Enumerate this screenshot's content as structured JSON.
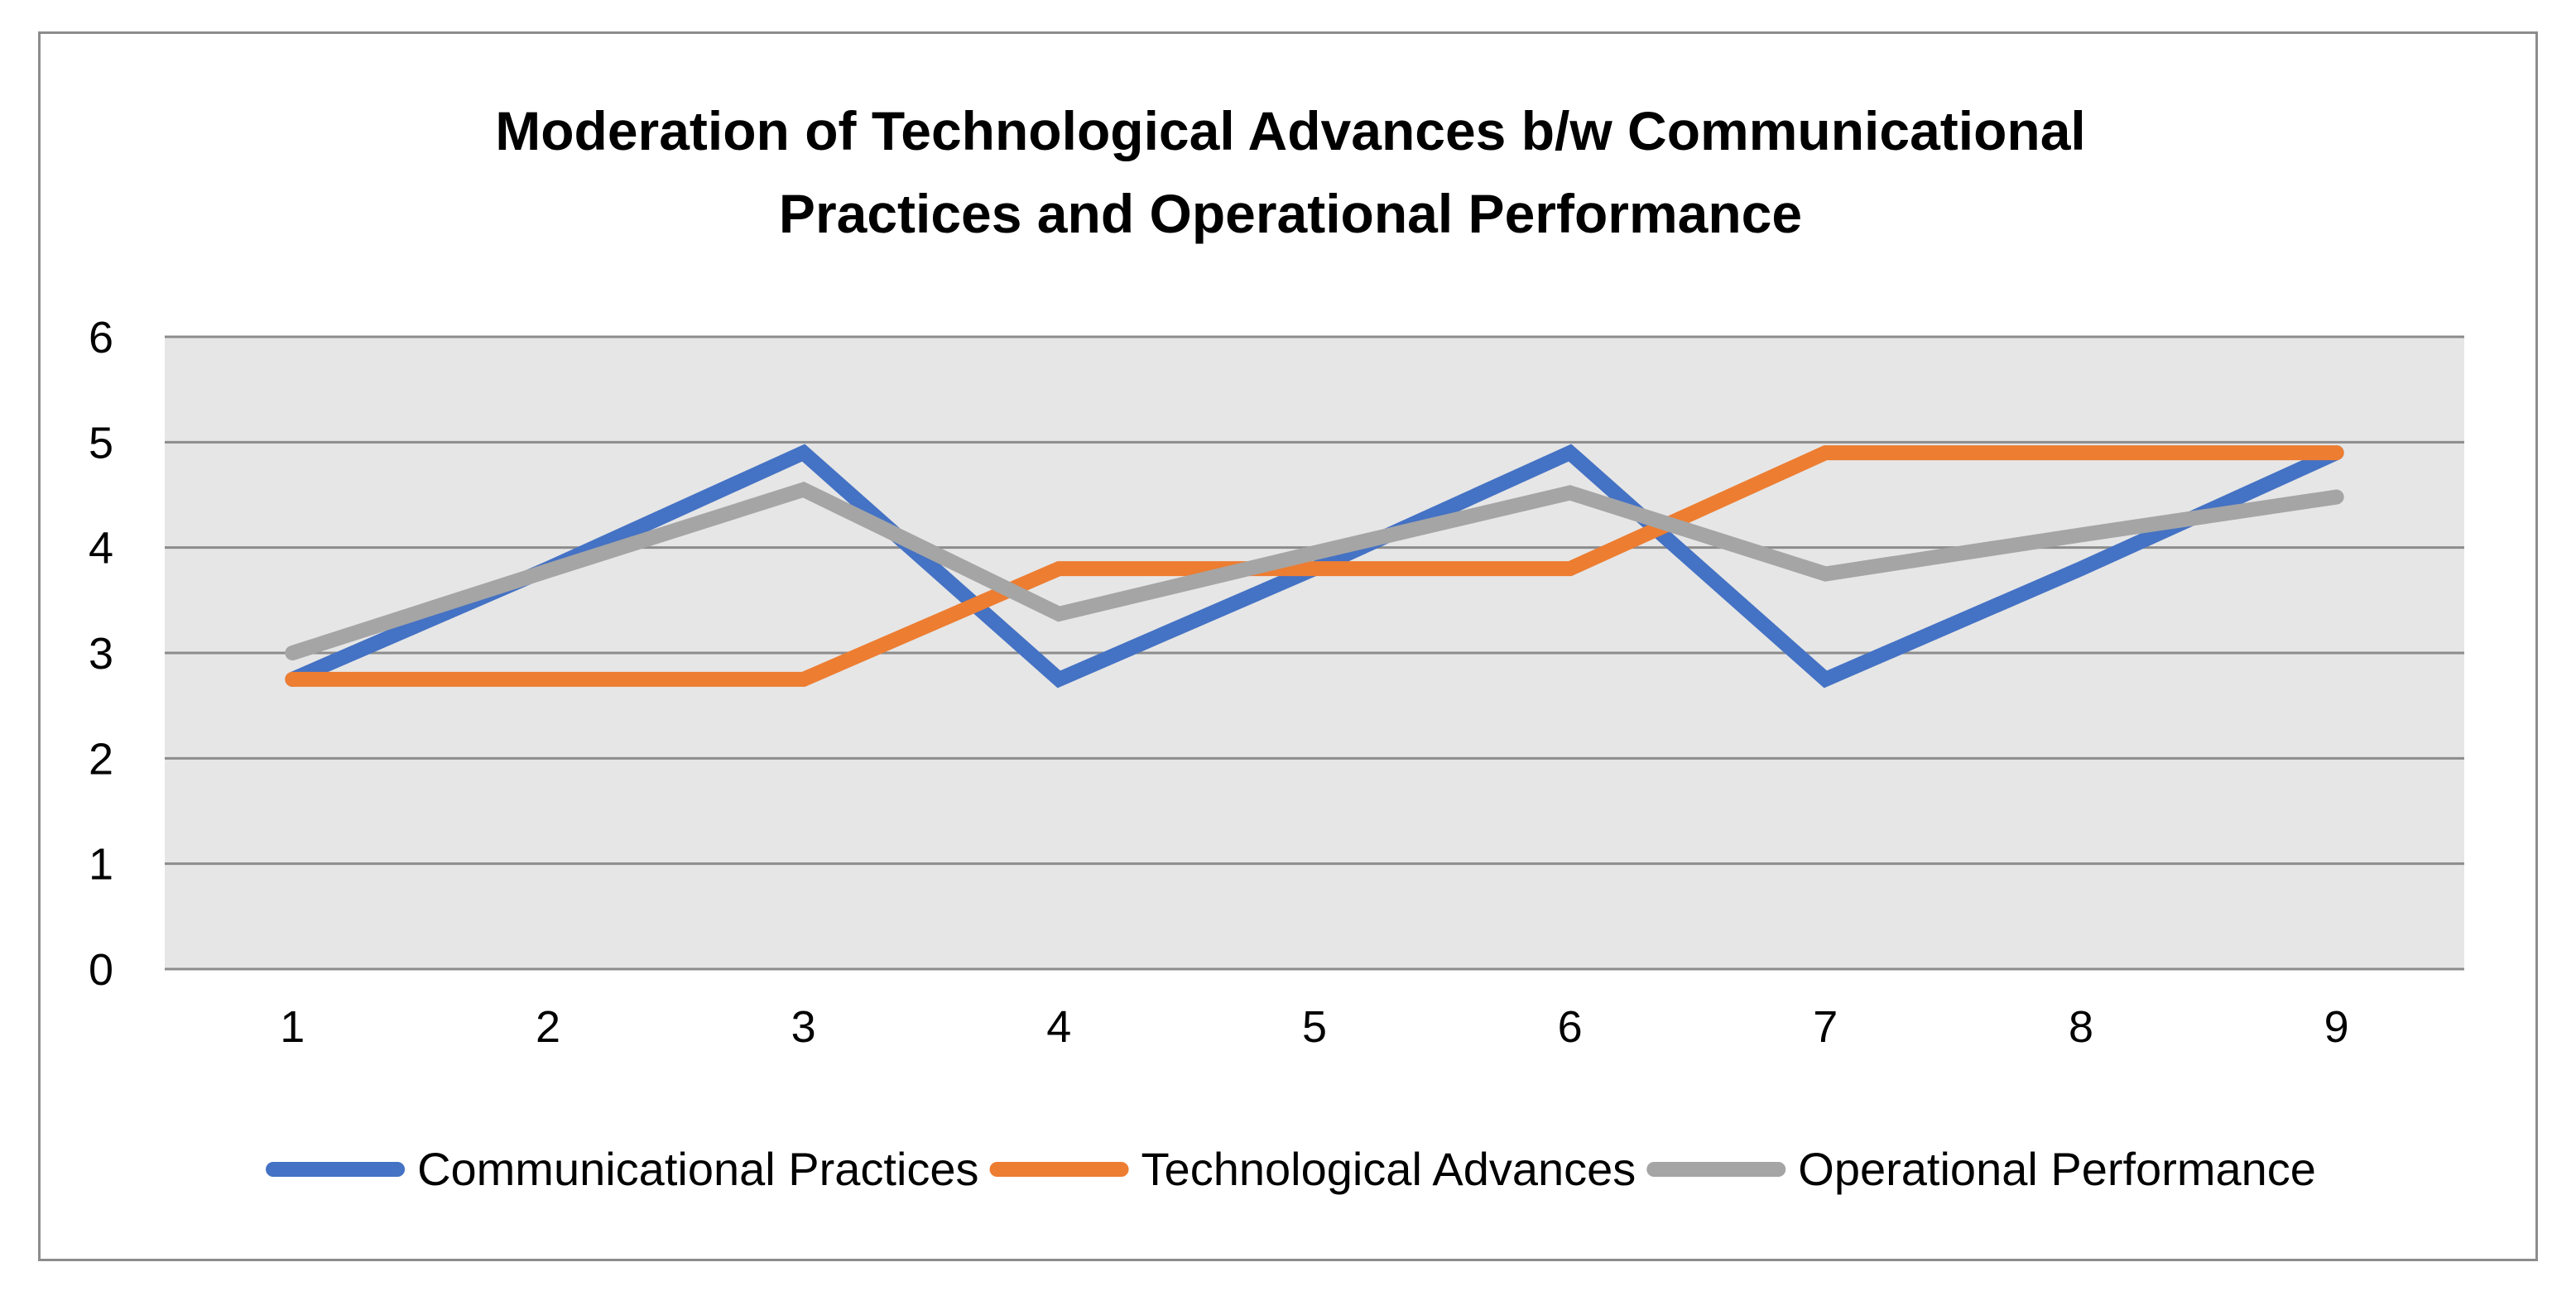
{
  "chart_data": {
    "type": "line",
    "title_lines": [
      "Moderation of Technological Advances b/w Communicational",
      "Practices and Operational Performance"
    ],
    "categories": [
      "1",
      "2",
      "3",
      "4",
      "5",
      "6",
      "7",
      "8",
      "9"
    ],
    "ylim": [
      0,
      6
    ],
    "yticks": [
      "0",
      "1",
      "2",
      "3",
      "4",
      "5",
      "6"
    ],
    "grid": true,
    "legend_position": "bottom",
    "plot_background": "#e6e6e6",
    "gridline_color": "#8c8c8c",
    "series": [
      {
        "name": "Communicational Practices",
        "color": "#4472c4",
        "values": [
          2.75,
          3.8,
          4.9,
          2.75,
          3.8,
          4.9,
          2.75,
          3.8,
          4.9
        ]
      },
      {
        "name": "Technological Advances",
        "color": "#ed7d31",
        "values": [
          2.75,
          2.75,
          2.75,
          3.8,
          3.8,
          3.8,
          4.9,
          4.9,
          4.9
        ]
      },
      {
        "name": "Operational Performance",
        "color": "#a5a5a5",
        "values": [
          3.0,
          3.78,
          4.55,
          3.37,
          3.95,
          4.52,
          3.75,
          4.12,
          4.48
        ]
      }
    ]
  }
}
